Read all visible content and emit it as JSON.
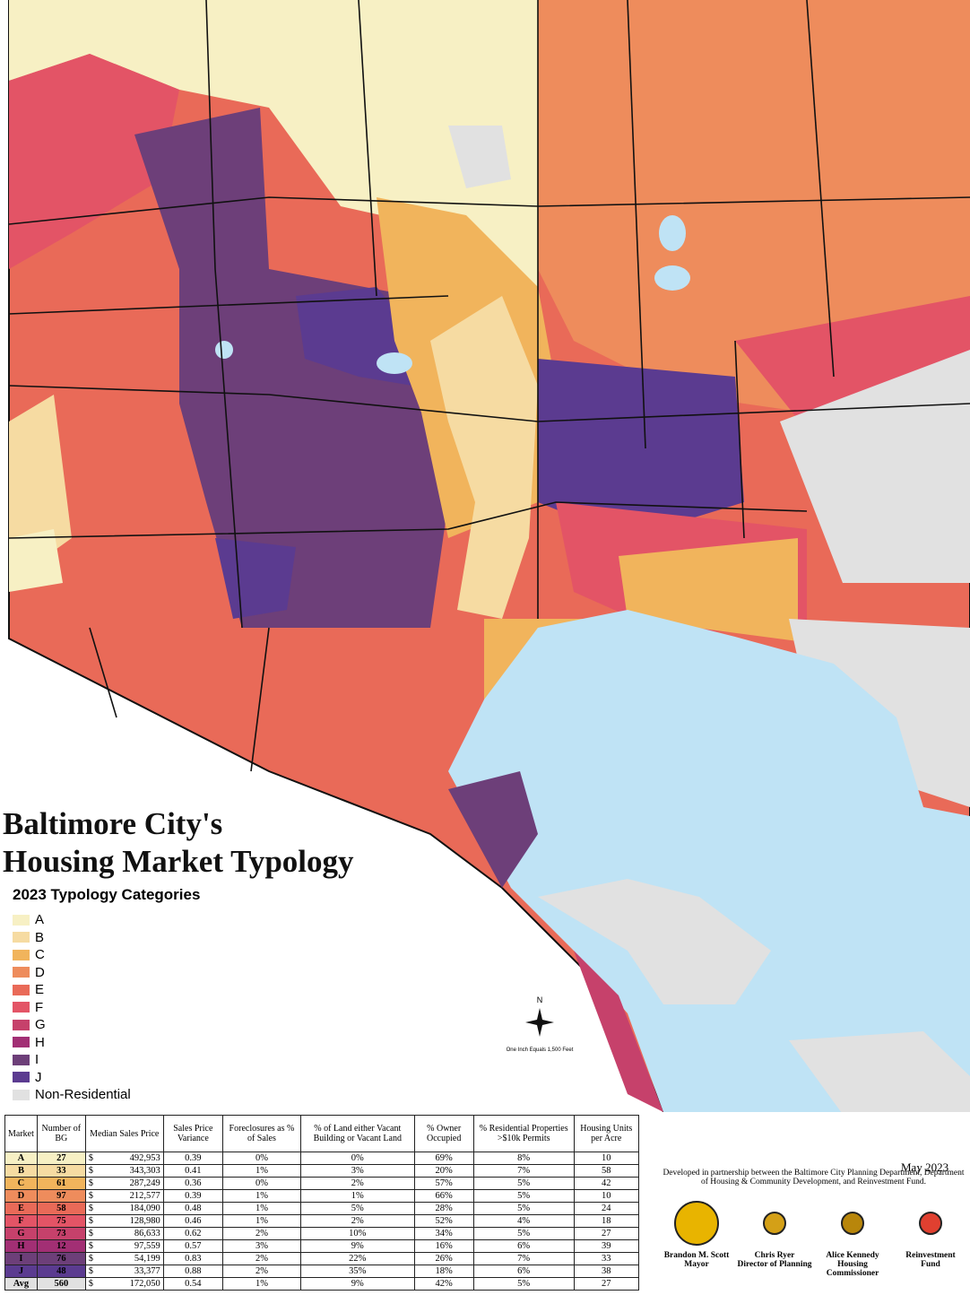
{
  "title": [
    "Baltimore City's",
    "Housing Market Typology"
  ],
  "legend": {
    "title": "2023 Typology Categories",
    "items": [
      {
        "label": "A",
        "color": "#f7f0c4"
      },
      {
        "label": "B",
        "color": "#f6dba2"
      },
      {
        "label": "C",
        "color": "#f1b45c"
      },
      {
        "label": "D",
        "color": "#ee8c5c"
      },
      {
        "label": "E",
        "color": "#e96a58"
      },
      {
        "label": "F",
        "color": "#e35466"
      },
      {
        "label": "G",
        "color": "#c6416b"
      },
      {
        "label": "H",
        "color": "#a22f74"
      },
      {
        "label": "I",
        "color": "#6d3f79"
      },
      {
        "label": "J",
        "color": "#5b3b90"
      },
      {
        "label": "Non-Residential",
        "color": "#e1e1e1"
      }
    ]
  },
  "map": {
    "north": "N",
    "scale": "One Inch Equals 1,500 Feet",
    "date": "May 2023"
  },
  "table": {
    "header": [
      "Market",
      "Number of BG",
      "Median Sales Price",
      "Sales Price Variance",
      "Foreclosures as % of Sales",
      "% of Land either Vacant Building or Vacant Land",
      "% Owner Occupied",
      "% Residential Properties >$10k Permits",
      "Housing Units per Acre"
    ],
    "rows": [
      [
        "A",
        "27",
        "$ 492,953",
        "0.39",
        "0%",
        "0%",
        "69%",
        "8%",
        "10"
      ],
      [
        "B",
        "33",
        "$ 343,303",
        "0.41",
        "1%",
        "3%",
        "20%",
        "7%",
        "58"
      ],
      [
        "C",
        "61",
        "$ 287,249",
        "0.36",
        "0%",
        "2%",
        "57%",
        "5%",
        "42"
      ],
      [
        "D",
        "97",
        "$ 212,577",
        "0.39",
        "1%",
        "1%",
        "66%",
        "5%",
        "10"
      ],
      [
        "E",
        "58",
        "$ 184,090",
        "0.48",
        "1%",
        "5%",
        "28%",
        "5%",
        "24"
      ],
      [
        "F",
        "75",
        "$ 128,980",
        "0.46",
        "1%",
        "2%",
        "52%",
        "4%",
        "18"
      ],
      [
        "G",
        "73",
        "$ 86,633",
        "0.62",
        "2%",
        "10%",
        "34%",
        "5%",
        "27"
      ],
      [
        "H",
        "12",
        "$ 97,559",
        "0.57",
        "3%",
        "9%",
        "16%",
        "6%",
        "39"
      ],
      [
        "I",
        "76",
        "$ 54,199",
        "0.83",
        "2%",
        "22%",
        "26%",
        "7%",
        "33"
      ],
      [
        "J",
        "48",
        "$ 33,377",
        "0.88",
        "2%",
        "35%",
        "18%",
        "6%",
        "38"
      ],
      [
        "Avg",
        "560",
        "$ 172,050",
        "0.54",
        "1%",
        "9%",
        "42%",
        "5%",
        "27"
      ]
    ]
  },
  "credits": {
    "note": "Developed in partnership between the Baltimore City Planning Department, Department of Housing & Community Development, and Reinvestment Fund.",
    "people": [
      {
        "name": "Brandon M. Scott",
        "role": "Mayor"
      },
      {
        "name": "Chris Ryer",
        "role": "Director of Planning"
      },
      {
        "name": "Alice Kennedy",
        "role": "Housing Commissioner"
      },
      {
        "name": "Reinvestment",
        "role": "Fund"
      }
    ]
  }
}
